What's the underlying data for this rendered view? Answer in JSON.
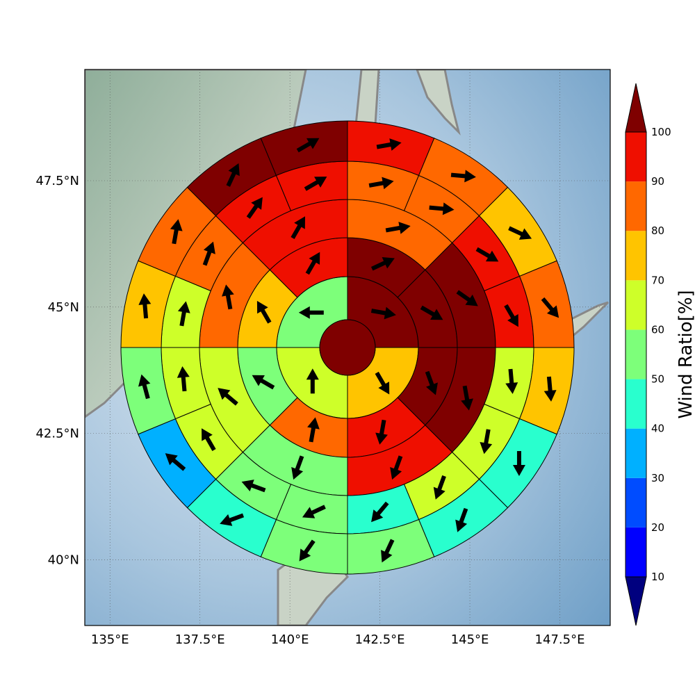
{
  "chart_data": {
    "type": "heatmap",
    "description_type": "polar-sector wind ratio map with wind direction arrows",
    "map_extent": {
      "lon": [
        134.3,
        148.9
      ],
      "lat": [
        38.7,
        49.7
      ]
    },
    "x_ticks": [
      "135°E",
      "137.5°E",
      "140°E",
      "142.5°E",
      "145°E",
      "147.5°E"
    ],
    "x_tick_values": [
      135,
      137.5,
      140,
      142.5,
      145,
      147.5
    ],
    "y_ticks": [
      "40°N",
      "42.5°N",
      "45°N",
      "47.5°N"
    ],
    "y_tick_values": [
      40,
      42.5,
      45,
      47.5
    ],
    "grid": true,
    "colorbar": {
      "label": "Wind Ratio[%]",
      "tick_labels": [
        "10",
        "20",
        "30",
        "40",
        "50",
        "60",
        "70",
        "80",
        "90",
        "100"
      ],
      "levels": [
        10,
        20,
        30,
        40,
        50,
        60,
        70,
        80,
        90,
        100
      ],
      "colors": [
        "#0000ff",
        "#004cff",
        "#00b0ff",
        "#29ffce",
        "#7dff7a",
        "#ceff29",
        "#ffc400",
        "#ff6800",
        "#ef0f00",
        "#7f0000"
      ],
      "under_color": "#00007f",
      "over_color": "#7f0000",
      "extend": "both"
    },
    "center": {
      "lon": 141.6,
      "lat": 44.2,
      "value": 100
    },
    "rings": [
      {
        "name": "ring-1",
        "sectors": 4,
        "values": [
          100,
          70,
          60,
          55
        ],
        "arrow_dirs": [
          100,
          150,
          0,
          270
        ]
      },
      {
        "name": "ring-2",
        "sectors": 8,
        "values": [
          100,
          100,
          100,
          90,
          80,
          55,
          70,
          90
        ],
        "arrow_dirs": [
          65,
          120,
          160,
          190,
          10,
          300,
          330,
          30
        ]
      },
      {
        "name": "ring-3",
        "sectors": 8,
        "values": [
          85,
          100,
          100,
          90,
          55,
          60,
          80,
          90
        ],
        "arrow_dirs": [
          80,
          125,
          170,
          200,
          200,
          310,
          350,
          30
        ]
      },
      {
        "name": "ring-4",
        "sectors": 16,
        "values": [
          85,
          85,
          90,
          90,
          65,
          60,
          65,
          45,
          50,
          55,
          65,
          65,
          65,
          80,
          90,
          90
        ],
        "arrow_dirs": [
          80,
          95,
          120,
          150,
          175,
          190,
          200,
          220,
          245,
          290,
          330,
          355,
          10,
          20,
          35,
          60
        ],
        "comment": "sector values list starts at north and goes clockwise"
      },
      {
        "name": "ring-5",
        "sectors": 16,
        "values": [
          90,
          80,
          75,
          80,
          75,
          45,
          45,
          50,
          50,
          45,
          35,
          55,
          75,
          80,
          100,
          100
        ],
        "arrow_dirs": [
          80,
          95,
          115,
          140,
          175,
          180,
          200,
          205,
          215,
          250,
          310,
          345,
          355,
          10,
          25,
          60
        ]
      }
    ]
  }
}
